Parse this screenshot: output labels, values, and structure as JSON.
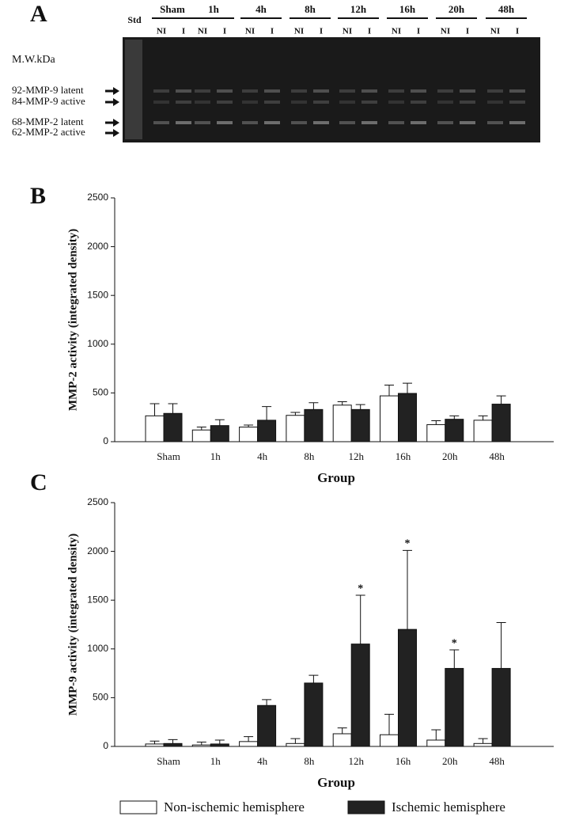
{
  "gel": {
    "label": "A",
    "std": "Std",
    "groups": [
      "Sham",
      "1h",
      "4h",
      "8h",
      "12h",
      "16h",
      "20h",
      "48h"
    ],
    "lanes": [
      "NI",
      "I"
    ],
    "mw_label": "M.W.kDa",
    "bands": [
      "92-MMP-9 latent",
      "84-MMP-9 active",
      "68-MMP-2 latent",
      "62-MMP-2 active"
    ]
  },
  "chart_data": [
    {
      "type": "bar",
      "label": "B",
      "y_label": "MMP-2 activity (integrated density)",
      "x_label": "Group",
      "categories": [
        "Sham",
        "1h",
        "4h",
        "8h",
        "12h",
        "16h",
        "20h",
        "48h"
      ],
      "series": [
        {
          "color": "#ffffff",
          "values": [
            265,
            120,
            150,
            270,
            375,
            470,
            175,
            220
          ],
          "errors": [
            125,
            30,
            20,
            30,
            35,
            110,
            40,
            45
          ]
        },
        {
          "color": "#222222",
          "values": [
            290,
            165,
            220,
            330,
            330,
            495,
            230,
            385
          ],
          "errors": [
            100,
            60,
            140,
            70,
            50,
            105,
            35,
            85
          ]
        }
      ],
      "ylim": [
        0,
        2500
      ],
      "yticks": [
        0,
        500,
        1000,
        1500,
        2000,
        2500
      ]
    },
    {
      "type": "bar",
      "label": "C",
      "y_label": "MMP-9 activity (integrated density)",
      "x_label": "Group",
      "categories": [
        "Sham",
        "1h",
        "4h",
        "8h",
        "12h",
        "16h",
        "20h",
        "48h"
      ],
      "series": [
        {
          "name": "Non-ischemic hemisphere",
          "color": "#ffffff",
          "values": [
            25,
            15,
            50,
            30,
            130,
            120,
            65,
            30
          ],
          "errors": [
            30,
            30,
            50,
            50,
            60,
            210,
            105,
            50
          ]
        },
        {
          "name": "Ischemic hemisphere",
          "color": "#222222",
          "values": [
            30,
            25,
            420,
            650,
            1050,
            1200,
            800,
            800
          ],
          "errors": [
            40,
            40,
            60,
            80,
            500,
            810,
            190,
            470
          ],
          "annotations": [
            null,
            null,
            null,
            null,
            "*",
            "*",
            "*",
            null
          ]
        }
      ],
      "ylim": [
        0,
        2500
      ],
      "yticks": [
        0,
        500,
        1000,
        1500,
        2000,
        2500
      ]
    }
  ]
}
